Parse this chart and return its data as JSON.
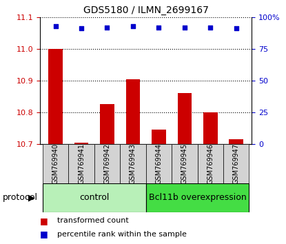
{
  "title": "GDS5180 / ILMN_2699167",
  "samples": [
    "GSM769940",
    "GSM769941",
    "GSM769942",
    "GSM769943",
    "GSM769944",
    "GSM769945",
    "GSM769946",
    "GSM769947"
  ],
  "bar_values": [
    11.0,
    10.705,
    10.825,
    10.905,
    10.745,
    10.86,
    10.8,
    10.715
  ],
  "percentile_values": [
    93,
    91,
    92,
    93,
    92,
    92,
    92,
    91
  ],
  "ylim_left": [
    10.7,
    11.1
  ],
  "yticks_left": [
    10.7,
    10.8,
    10.9,
    11.0,
    11.1
  ],
  "ylim_right": [
    0,
    100
  ],
  "yticks_right": [
    0,
    25,
    50,
    75,
    100
  ],
  "yticklabels_right": [
    "0",
    "25",
    "50",
    "75",
    "100%"
  ],
  "bar_color": "#cc0000",
  "dot_color": "#0000cc",
  "group1_label": "control",
  "group2_label": "Bcl11b overexpression",
  "group1_indices": [
    0,
    1,
    2,
    3
  ],
  "group2_indices": [
    4,
    5,
    6,
    7
  ],
  "group1_bg": "#b8f0b8",
  "group2_bg": "#44dd44",
  "sample_bg": "#d3d3d3",
  "protocol_label": "protocol",
  "legend_bar_label": "transformed count",
  "legend_dot_label": "percentile rank within the sample",
  "bar_baseline": 10.7,
  "ylabel_left_color": "#cc0000",
  "ylabel_right_color": "#0000cc",
  "title_fontsize": 10,
  "tick_fontsize": 8,
  "sample_fontsize": 7,
  "group_fontsize": 9,
  "legend_fontsize": 8
}
